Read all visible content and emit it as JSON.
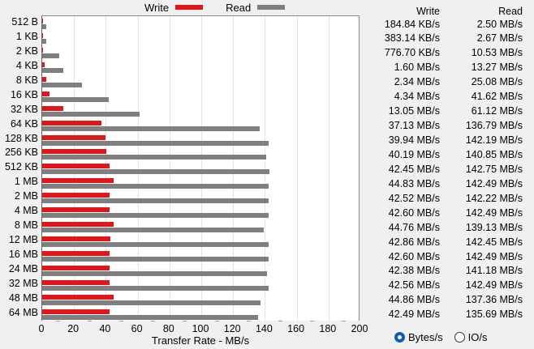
{
  "legend": {
    "write_label": "Write",
    "write_color": "#e0161b",
    "read_label": "Read",
    "read_color": "#7f7f7f"
  },
  "table": {
    "write_header": "Write",
    "read_header": "Read",
    "rows": [
      {
        "size": "512 B",
        "write": "184.84 KB/s",
        "read": "2.50 MB/s"
      },
      {
        "size": "1 KB",
        "write": "383.14 KB/s",
        "read": "2.67 MB/s"
      },
      {
        "size": "2 KB",
        "write": "776.70 KB/s",
        "read": "10.53 MB/s"
      },
      {
        "size": "4 KB",
        "write": "1.60 MB/s",
        "read": "13.27 MB/s"
      },
      {
        "size": "8 KB",
        "write": "2.34 MB/s",
        "read": "25.08 MB/s"
      },
      {
        "size": "16 KB",
        "write": "4.34 MB/s",
        "read": "41.62 MB/s"
      },
      {
        "size": "32 KB",
        "write": "13.05 MB/s",
        "read": "61.12 MB/s"
      },
      {
        "size": "64 KB",
        "write": "37.13 MB/s",
        "read": "136.79 MB/s"
      },
      {
        "size": "128 KB",
        "write": "39.94 MB/s",
        "read": "142.19 MB/s"
      },
      {
        "size": "256 KB",
        "write": "40.19 MB/s",
        "read": "140.85 MB/s"
      },
      {
        "size": "512 KB",
        "write": "42.45 MB/s",
        "read": "142.75 MB/s"
      },
      {
        "size": "1 MB",
        "write": "44.83 MB/s",
        "read": "142.49 MB/s"
      },
      {
        "size": "2 MB",
        "write": "42.52 MB/s",
        "read": "142.22 MB/s"
      },
      {
        "size": "4 MB",
        "write": "42.60 MB/s",
        "read": "142.49 MB/s"
      },
      {
        "size": "8 MB",
        "write": "44.76 MB/s",
        "read": "139.13 MB/s"
      },
      {
        "size": "12 MB",
        "write": "42.86 MB/s",
        "read": "142.45 MB/s"
      },
      {
        "size": "16 MB",
        "write": "42.60 MB/s",
        "read": "142.49 MB/s"
      },
      {
        "size": "24 MB",
        "write": "42.38 MB/s",
        "read": "141.18 MB/s"
      },
      {
        "size": "32 MB",
        "write": "42.56 MB/s",
        "read": "142.49 MB/s"
      },
      {
        "size": "48 MB",
        "write": "44.86 MB/s",
        "read": "137.36 MB/s"
      },
      {
        "size": "64 MB",
        "write": "42.49 MB/s",
        "read": "135.69 MB/s"
      }
    ]
  },
  "axis": {
    "xlabel": "Transfer Rate - MB/s",
    "ticks": [
      "0",
      "20",
      "40",
      "60",
      "80",
      "100",
      "120",
      "140",
      "160",
      "180",
      "200"
    ]
  },
  "radios": {
    "bytes_label": "Bytes/s",
    "io_label": "IO/s",
    "selected": "bytes"
  },
  "chart_data": {
    "type": "bar",
    "orientation": "horizontal",
    "title": "",
    "xlabel": "Transfer Rate - MB/s",
    "ylabel": "",
    "xlim": [
      0,
      200
    ],
    "grid": true,
    "legend_position": "top",
    "categories": [
      "512 B",
      "1 KB",
      "2 KB",
      "4 KB",
      "8 KB",
      "16 KB",
      "32 KB",
      "64 KB",
      "128 KB",
      "256 KB",
      "512 KB",
      "1 MB",
      "2 MB",
      "4 MB",
      "8 MB",
      "12 MB",
      "16 MB",
      "24 MB",
      "32 MB",
      "48 MB",
      "64 MB"
    ],
    "series": [
      {
        "name": "Write",
        "color": "#e0161b",
        "values": [
          0.18,
          0.37,
          0.76,
          1.6,
          2.34,
          4.34,
          13.05,
          37.13,
          39.94,
          40.19,
          42.45,
          44.83,
          42.52,
          42.6,
          44.76,
          42.86,
          42.6,
          42.38,
          42.56,
          44.86,
          42.49
        ]
      },
      {
        "name": "Read",
        "color": "#7f7f7f",
        "values": [
          2.5,
          2.67,
          10.53,
          13.27,
          25.08,
          41.62,
          61.12,
          136.79,
          142.19,
          140.85,
          142.75,
          142.49,
          142.22,
          142.49,
          139.13,
          142.45,
          142.49,
          141.18,
          142.49,
          137.36,
          135.69
        ]
      }
    ]
  }
}
